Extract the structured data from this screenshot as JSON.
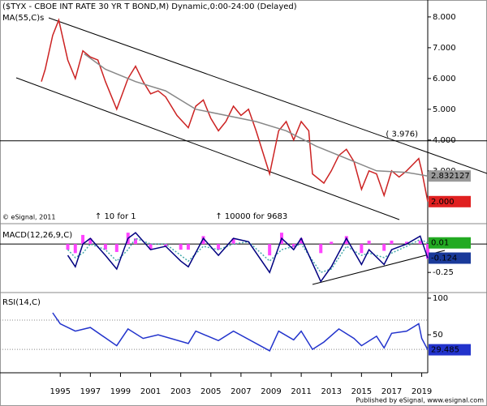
{
  "title": "($TYX - CBOE INT RATE 30 YR T BOND,M) Dynamic,0:00-24:00 (Delayed)",
  "copyright": "© eSignal, 2011",
  "footer": "Published by eSignal, www.esignal.com",
  "chart_data": [
    {
      "type": "line",
      "label": "MA(55,C)s",
      "xlim": [
        1991,
        2019.4
      ],
      "ylim": [
        1.31,
        8.55
      ],
      "yticks": [
        {
          "value": 3,
          "label": "3.000"
        },
        {
          "value": 4,
          "label": "4.000"
        },
        {
          "value": 5,
          "label": "5.000"
        },
        {
          "value": 6,
          "label": "6.000"
        },
        {
          "value": 7,
          "label": "7.000"
        },
        {
          "value": 8,
          "label": "8.000"
        }
      ],
      "hlines": [
        {
          "value": 3.976,
          "label": "( 3.976)"
        }
      ],
      "annotations": [
        {
          "x": 1997.3,
          "text": "↑ 10 for 1"
        },
        {
          "x": 2005.3,
          "text": "↑ 10000 for 9683"
        }
      ],
      "series": [
        {
          "color": "#cc2222",
          "tag_color": "#e02020",
          "x": [
            1993.75,
            1994,
            1994.5,
            1994.9,
            1995.5,
            1996,
            1996.5,
            1997,
            1997.5,
            1998,
            1998.75,
            1999.5,
            2000,
            2000.5,
            2001,
            2001.5,
            2002,
            2002.75,
            2003.5,
            2004,
            2004.5,
            2005,
            2005.5,
            2006,
            2006.5,
            2007,
            2007.5,
            2008,
            2008.9,
            2009.5,
            2010,
            2010.5,
            2011,
            2011.5,
            2011.75,
            2012.5,
            2013,
            2013.5,
            2014,
            2014.5,
            2015,
            2015.5,
            2016,
            2016.5,
            2017,
            2017.5,
            2018,
            2018.8,
            2019,
            2019.4
          ],
          "values": [
            5.9,
            6.3,
            7.4,
            7.9,
            6.6,
            6.0,
            6.9,
            6.7,
            6.6,
            5.9,
            5.0,
            6.0,
            6.4,
            5.9,
            5.5,
            5.6,
            5.4,
            4.8,
            4.4,
            5.1,
            5.3,
            4.7,
            4.3,
            4.6,
            5.1,
            4.8,
            5.0,
            4.3,
            2.9,
            4.3,
            4.6,
            4.0,
            4.6,
            4.3,
            2.9,
            2.6,
            3.0,
            3.5,
            3.7,
            3.3,
            2.4,
            3.0,
            2.9,
            2.2,
            3.0,
            2.8,
            3.0,
            3.4,
            3.0,
            2
          ],
          "value_labels": [
            null,
            null,
            null,
            null,
            null,
            null,
            null,
            null,
            null,
            null,
            null,
            null,
            null,
            null,
            null,
            null,
            null,
            null,
            null,
            null,
            null,
            null,
            null,
            null,
            null,
            null,
            null,
            null,
            null,
            null,
            null,
            null,
            null,
            null,
            null,
            null,
            null,
            null,
            null,
            null,
            null,
            null,
            null,
            null,
            null,
            null,
            null,
            null,
            null,
            "2.000"
          ]
        },
        {
          "color": "#888888",
          "tag_color": "#9a9a9a",
          "x": [
            1996.6,
            1998,
            2000,
            2002,
            2004,
            2006,
            2008,
            2010,
            2012,
            2014,
            2016,
            2018,
            2019.4
          ],
          "values": [
            6.8,
            6.3,
            5.9,
            5.6,
            5.0,
            4.8,
            4.6,
            4.3,
            3.8,
            3.4,
            3.0,
            2.95,
            2.832127
          ]
        }
      ]
    },
    {
      "type": "line",
      "label": "MACD(12,26,9,C)",
      "xlim": [
        1991,
        2019.4
      ],
      "ylim": [
        -0.42,
        0.165
      ],
      "yticks": [
        -0.25
      ],
      "hlines": [
        0
      ],
      "series": [
        {
          "kind": "bar",
          "color": "#ff44ff",
          "x": [
            1995.5,
            1996,
            1996.5,
            1997,
            1998,
            1998.75,
            1999.5,
            2000,
            2001,
            2002,
            2003,
            2003.5,
            2004.5,
            2005.5,
            2006.5,
            2007.5,
            2008.9,
            2009.7,
            2010.5,
            2011,
            2012.3,
            2013,
            2014,
            2015,
            2015.5,
            2016.5,
            2017,
            2018,
            2018.9,
            2019.4
          ],
          "values": [
            -0.05,
            -0.08,
            0.08,
            0.05,
            -0.05,
            -0.07,
            0.1,
            0.05,
            -0.05,
            -0.02,
            -0.05,
            -0.05,
            0.07,
            -0.05,
            0.05,
            0.0,
            -0.1,
            0.1,
            -0.03,
            0.05,
            -0.08,
            0.02,
            0.07,
            -0.08,
            0.03,
            -0.06,
            0.03,
            0.02,
            0.03,
            -0.13
          ]
        },
        {
          "color": "#44aaaa",
          "dash": true,
          "tag_color": "#22aa22",
          "x": [
            1995.5,
            1996,
            1996.5,
            1997,
            1998,
            1998.75,
            1999.5,
            2000,
            2001,
            2002,
            2003,
            2003.5,
            2004.5,
            2005.5,
            2006.5,
            2007.5,
            2008.9,
            2009.7,
            2010.5,
            2011,
            2012.3,
            2013,
            2014,
            2015,
            2015.5,
            2016.5,
            2017,
            2018,
            2018.9,
            2019.4
          ],
          "values": [
            -0.05,
            -0.12,
            -0.08,
            0.0,
            -0.05,
            -0.15,
            -0.05,
            0.05,
            0.0,
            0.0,
            -0.1,
            -0.15,
            -0.02,
            -0.05,
            0.0,
            0.02,
            -0.15,
            -0.05,
            -0.02,
            0.0,
            -0.25,
            -0.22,
            -0.02,
            -0.1,
            -0.08,
            -0.12,
            -0.08,
            -0.02,
            0.04,
            0.01
          ]
        },
        {
          "color": "#000080",
          "tag_color": "#1a3a9a",
          "x": [
            1995.5,
            1996,
            1996.5,
            1997,
            1998,
            1998.75,
            1999.5,
            2000,
            2001,
            2002,
            2003,
            2003.5,
            2004.5,
            2005.5,
            2006.5,
            2007.5,
            2008.9,
            2009.7,
            2010.5,
            2011,
            2012.3,
            2013,
            2014,
            2015,
            2015.5,
            2016.5,
            2017,
            2018,
            2018.9,
            2019.4
          ],
          "values": [
            -0.1,
            -0.2,
            0.0,
            0.05,
            -0.1,
            -0.22,
            0.05,
            0.1,
            -0.05,
            -0.02,
            -0.15,
            -0.2,
            0.05,
            -0.1,
            0.05,
            0.02,
            -0.25,
            0.05,
            -0.05,
            0.05,
            -0.33,
            -0.2,
            0.05,
            -0.18,
            -0.05,
            -0.18,
            -0.05,
            0.0,
            0.07,
            -0.124
          ]
        }
      ]
    },
    {
      "type": "line",
      "label": "RSI(14,C)",
      "xlim": [
        1991,
        2019.4
      ],
      "ylim": [
        -2,
        105.5
      ],
      "yticks": [
        50,
        100
      ],
      "hlines": [
        30,
        70
      ],
      "dotted": true,
      "xticks": [
        1995,
        1997,
        1999,
        2001,
        2003,
        2005,
        2007,
        2009,
        2011,
        2013,
        2015,
        2017,
        2019
      ],
      "series": [
        {
          "color": "#2233cc",
          "tag_color": "#2233cc",
          "x": [
            1994.5,
            1995,
            1996,
            1997,
            1998.75,
            1999.5,
            2000.5,
            2001.5,
            2003.5,
            2004,
            2005.5,
            2006.5,
            2008.9,
            2009.5,
            2010.5,
            2011,
            2011.75,
            2012.5,
            2013.5,
            2014.5,
            2015,
            2016,
            2016.5,
            2017,
            2018,
            2018.8,
            2019,
            2019.4
          ],
          "values": [
            80,
            65,
            55,
            60,
            35,
            58,
            45,
            50,
            38,
            55,
            42,
            55,
            28,
            55,
            43,
            55,
            30,
            40,
            58,
            45,
            35,
            48,
            32,
            52,
            55,
            65,
            45,
            29.485
          ]
        }
      ]
    }
  ]
}
